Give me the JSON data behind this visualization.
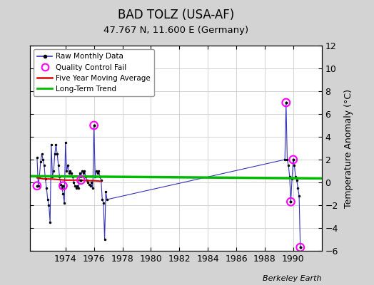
{
  "title": "BAD TOLZ (USA-AF)",
  "subtitle": "47.767 N, 11.600 E (Germany)",
  "ylabel": "Temperature Anomaly (°C)",
  "credit": "Berkeley Earth",
  "ylim": [
    -6,
    12
  ],
  "yticks": [
    -6,
    -4,
    -2,
    0,
    2,
    4,
    6,
    8,
    10,
    12
  ],
  "xlim": [
    1971.5,
    1992.0
  ],
  "xticks": [
    1974,
    1976,
    1978,
    1980,
    1982,
    1984,
    1986,
    1988,
    1990
  ],
  "bg_color": "#d3d3d3",
  "plot_bg_color": "#ffffff",
  "raw_x": [
    1972.0,
    1972.083,
    1972.167,
    1972.25,
    1972.333,
    1972.417,
    1972.5,
    1972.583,
    1972.667,
    1972.75,
    1972.833,
    1972.917,
    1973.0,
    1973.083,
    1973.167,
    1973.25,
    1973.333,
    1973.417,
    1973.5,
    1973.583,
    1973.667,
    1973.75,
    1973.833,
    1973.917,
    1974.0,
    1974.083,
    1974.167,
    1974.25,
    1974.333,
    1974.417,
    1974.5,
    1974.583,
    1974.667,
    1974.75,
    1974.833,
    1974.917,
    1975.0,
    1975.083,
    1975.167,
    1975.25,
    1975.333,
    1975.417,
    1975.5,
    1975.583,
    1975.667,
    1975.75,
    1975.833,
    1975.917,
    1976.0,
    1976.083,
    1976.167,
    1976.25,
    1976.333,
    1976.417,
    1976.5,
    1976.583,
    1976.667,
    1976.75,
    1976.833,
    1976.917,
    1989.417,
    1989.5,
    1989.583,
    1989.667,
    1989.75,
    1989.833,
    1989.917,
    1990.0,
    1990.083,
    1990.167,
    1990.25,
    1990.333,
    1990.417,
    1990.5
  ],
  "raw_y": [
    2.2,
    -0.3,
    0.5,
    1.8,
    2.5,
    2.0,
    1.5,
    0.3,
    -0.5,
    -1.5,
    -2.0,
    -3.5,
    3.3,
    0.5,
    1.0,
    2.5,
    3.3,
    2.5,
    1.5,
    0.5,
    -0.2,
    -0.5,
    -1.0,
    -1.8,
    3.5,
    1.0,
    1.5,
    0.8,
    1.0,
    0.8,
    0.5,
    0.0,
    -0.3,
    -0.5,
    -0.3,
    -0.5,
    0.8,
    0.5,
    1.0,
    0.8,
    1.0,
    0.5,
    0.2,
    0.0,
    -0.2,
    -0.3,
    0.0,
    -0.5,
    5.0,
    0.5,
    1.0,
    0.8,
    1.0,
    0.5,
    0.2,
    -1.5,
    -1.8,
    -5.0,
    -0.8,
    -1.5,
    2.0,
    7.0,
    2.0,
    1.5,
    0.5,
    -1.7,
    0.3,
    2.0,
    1.5,
    0.5,
    0.2,
    -0.5,
    -1.2,
    -5.7
  ],
  "qc_fail_x": [
    1972.0,
    1973.833,
    1975.083,
    1976.0,
    1989.5,
    1989.833,
    1990.0,
    1990.5
  ],
  "qc_fail_y": [
    -0.3,
    -0.3,
    0.2,
    5.0,
    7.0,
    -1.7,
    2.0,
    -5.7
  ],
  "trend_x": [
    1971.5,
    1992.0
  ],
  "trend_y": [
    0.55,
    0.35
  ],
  "five_yr_x": [
    1972.0,
    1972.5,
    1973.0,
    1973.5,
    1974.0,
    1974.5,
    1975.0,
    1975.5,
    1976.0,
    1976.5
  ],
  "five_yr_y": [
    0.4,
    0.3,
    0.3,
    0.25,
    0.2,
    0.2,
    0.2,
    0.15,
    0.15,
    0.1
  ],
  "raw_line_color": "#3333bb",
  "raw_marker_color": "#000000",
  "qc_color": "#ff00ff",
  "five_yr_color": "#dd0000",
  "trend_color": "#00bb00",
  "grid_color": "#cccccc"
}
